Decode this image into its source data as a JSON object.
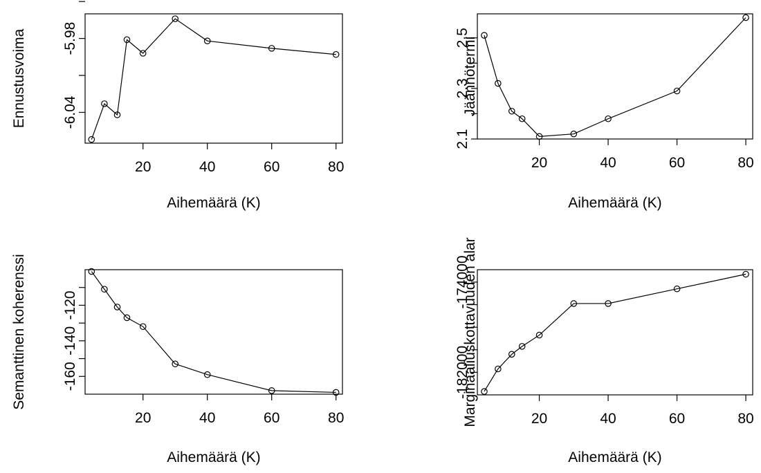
{
  "chart_data": [
    {
      "type": "line",
      "title": "",
      "xlabel": "Aihemäärä (K)",
      "ylabel": "Ennustusvoima",
      "x": [
        4,
        8,
        12,
        15,
        20,
        30,
        40,
        60,
        80
      ],
      "values": [
        -6.062,
        -6.033,
        -6.042,
        -5.981,
        -5.992,
        -5.964,
        -5.982,
        -5.988,
        -5.993
      ],
      "x_ticks": [
        20,
        40,
        60,
        80
      ],
      "x_tick_labels": [
        "20",
        "40",
        "60",
        "80"
      ],
      "y_ticks": [
        -6.04,
        -6.01,
        -5.98,
        -5.95
      ],
      "y_tick_labels": [
        "-6.04",
        "",
        "-5.98",
        ""
      ],
      "xlim": [
        2,
        82
      ],
      "ylim": [
        -6.065,
        -5.96
      ],
      "grid": false,
      "legend": "none"
    },
    {
      "type": "line",
      "title": "",
      "xlabel": "Aihemäärä (K)",
      "ylabel": "Jäännötermi",
      "x": [
        4,
        8,
        12,
        15,
        20,
        30,
        40,
        60,
        80
      ],
      "values": [
        2.51,
        2.32,
        2.21,
        2.18,
        2.11,
        2.12,
        2.18,
        2.29,
        2.58
      ],
      "x_ticks": [
        20,
        40,
        60,
        80
      ],
      "x_tick_labels": [
        "20",
        "40",
        "60",
        "80"
      ],
      "y_ticks": [
        2.1,
        2.2,
        2.3,
        2.4,
        2.5
      ],
      "y_tick_labels": [
        "2.1",
        "",
        "2.3",
        "",
        "2.5"
      ],
      "xlim": [
        2,
        82
      ],
      "ylim": [
        2.1,
        2.595
      ],
      "grid": false,
      "legend": "none"
    },
    {
      "type": "line",
      "title": "",
      "xlabel": "Aihemäärä (K)",
      "ylabel": "Semanttinen koherenssi",
      "x": [
        4,
        8,
        12,
        15,
        20,
        30,
        40,
        60,
        80
      ],
      "values": [
        -101,
        -111,
        -121,
        -127,
        -132,
        -153,
        -159,
        -168,
        -169
      ],
      "x_ticks": [
        20,
        40,
        60,
        80
      ],
      "x_tick_labels": [
        "20",
        "40",
        "60",
        "80"
      ],
      "y_ticks": [
        -160,
        -150,
        -140,
        -130,
        -120,
        -110
      ],
      "y_tick_labels": [
        "-160",
        "",
        "-140",
        "",
        "-120",
        ""
      ],
      "xlim": [
        2,
        82
      ],
      "ylim": [
        -170,
        -100
      ],
      "grid": false,
      "legend": "none"
    },
    {
      "type": "line",
      "title": "",
      "xlabel": "Aihemäärä (K)",
      "ylabel": "Marginaaliuskottavuuden alar",
      "x": [
        4,
        8,
        12,
        15,
        20,
        30,
        40,
        60,
        80
      ],
      "values": [
        -183700,
        -181700,
        -180400,
        -179700,
        -178700,
        -175900,
        -175900,
        -174600,
        -173300
      ],
      "x_ticks": [
        20,
        40,
        60,
        80
      ],
      "x_tick_labels": [
        "20",
        "40",
        "60",
        "80"
      ],
      "y_ticks": [
        -182000,
        -180000,
        -178000,
        -176000,
        -174000
      ],
      "y_tick_labels": [
        "-182000",
        "",
        "",
        "",
        "-174000"
      ],
      "xlim": [
        2,
        82
      ],
      "ylim": [
        -184000,
        -172900
      ],
      "grid": false,
      "legend": "none"
    }
  ]
}
